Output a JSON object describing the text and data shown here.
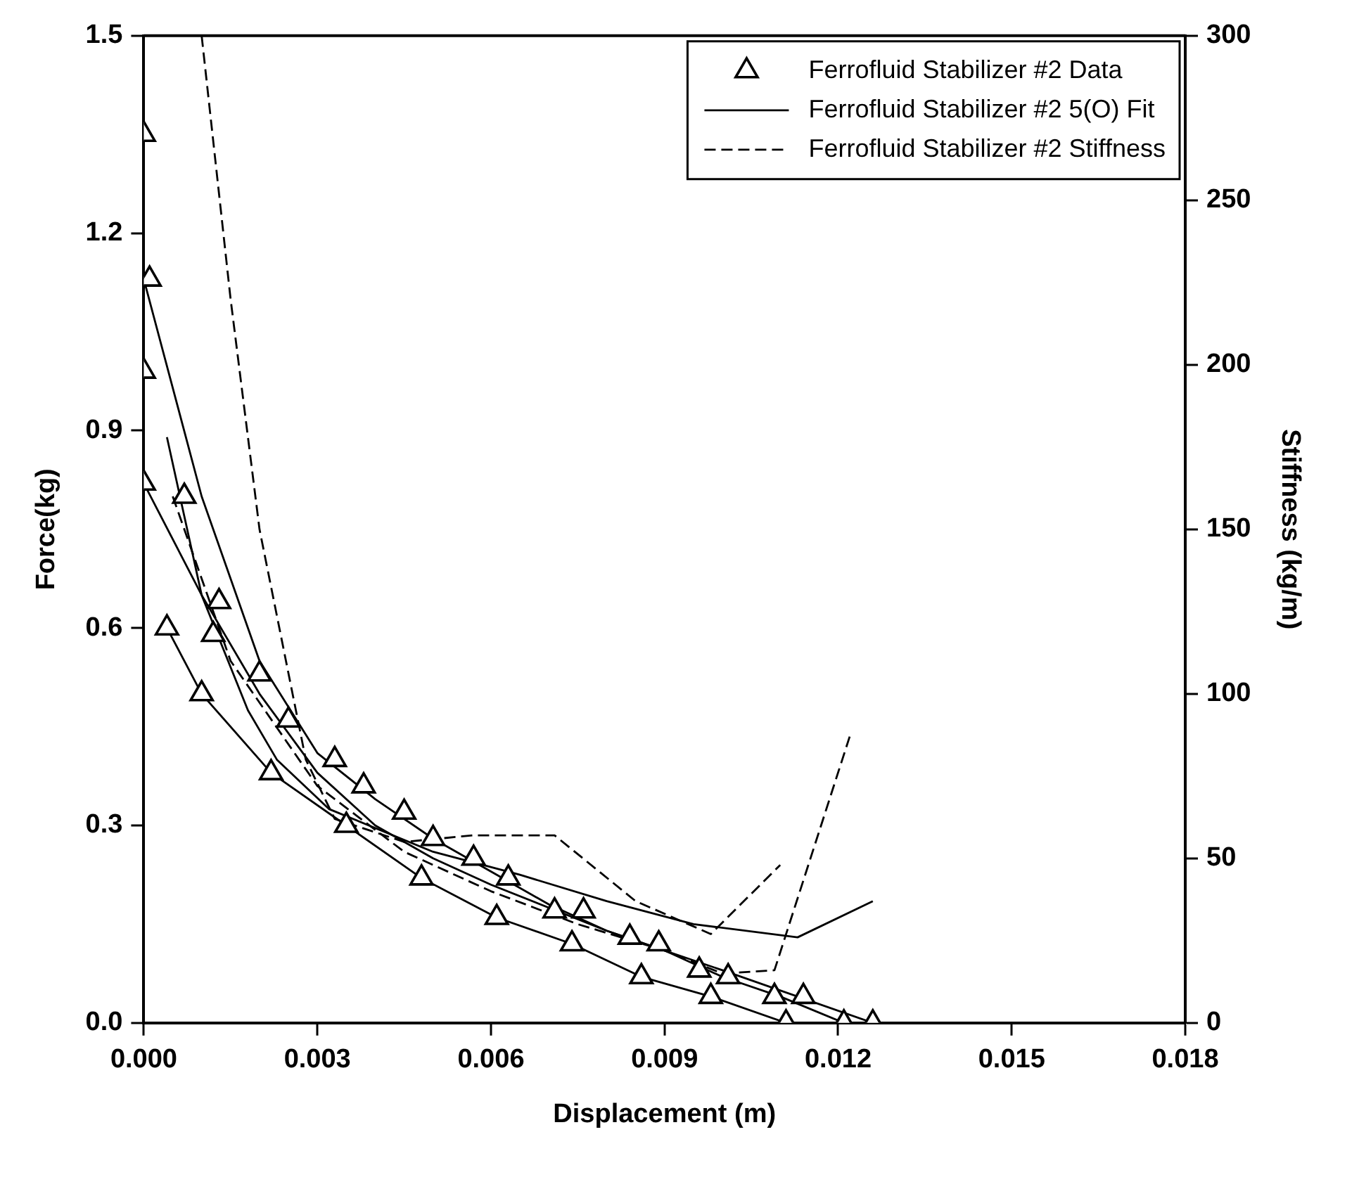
{
  "chart_data": {
    "type": "line",
    "xlabel": "Displacement (m)",
    "ylabel": "Force(kg)",
    "y2label": "Stiffness (kg/m)",
    "xlim": [
      0,
      0.018
    ],
    "xticks": [
      {
        "value": 0,
        "label": "0.000"
      },
      {
        "value": 0.003,
        "label": "0.003"
      },
      {
        "value": 0.006,
        "label": "0.006"
      },
      {
        "value": 0.009,
        "label": "0.009"
      },
      {
        "value": 0.012,
        "label": "0.012"
      },
      {
        "value": 0.015,
        "label": "0.015"
      },
      {
        "value": 0.018,
        "label": "0.018"
      }
    ],
    "ylim": [
      0,
      1.5
    ],
    "yticks": [
      {
        "value": 0,
        "label": "0.0"
      },
      0.3,
      0.6,
      0.9,
      1.2,
      1.5
    ],
    "y2lim": [
      0,
      300
    ],
    "y2ticks": [
      0,
      50,
      100,
      150,
      200,
      250,
      300
    ],
    "grid": false,
    "legend": "top right",
    "series": [
      {
        "name": "Ferrofluid Stabilizer #2 Data",
        "type": "scatter",
        "marker": "triangle",
        "color": "#000000",
        "x": [
          0,
          0.0001,
          0,
          0,
          0.0004,
          0.0007,
          0.001,
          0.0013,
          0.0012,
          0.002,
          0.0022,
          0.0025,
          0.0033,
          0.0035,
          0.0038,
          0.0045,
          0.0048,
          0.005,
          0.0057,
          0.0061,
          0.0063,
          0.0071,
          0.0074,
          0.0076,
          0.0084,
          0.0086,
          0.0089,
          0.0096,
          0.0098,
          0.0101,
          0.0109,
          0.0111,
          0.0114,
          0.0121,
          0.0126
        ],
        "values": [
          1.35,
          1.13,
          0.99,
          0.82,
          0.6,
          0.8,
          0.5,
          0.64,
          0.59,
          0.53,
          0.38,
          0.46,
          0.4,
          0.3,
          0.36,
          0.32,
          0.22,
          0.28,
          0.25,
          0.16,
          0.22,
          0.17,
          0.12,
          0.17,
          0.13,
          0.07,
          0.12,
          0.08,
          0.04,
          0.07,
          0.04,
          0,
          0.04,
          0,
          0
        ]
      },
      {
        "name": "Ferrofluid Stabilizer #2 5(O) Fit",
        "marker": "none",
        "line_style": "solid",
        "color": "#000000",
        "x": [
          0,
          0.001,
          0.002,
          0.003,
          0.004,
          0.005,
          0.006,
          0.007,
          0.008,
          0.009,
          0.01,
          0.011,
          0.0121
        ],
        "values": [
          1.13,
          0.8,
          0.55,
          0.41,
          0.34,
          0.28,
          0.23,
          0.18,
          0.14,
          0.11,
          0.07,
          0.04,
          0
        ]
      },
      {
        "marker": "none",
        "line_style": "solid",
        "color": "#000000",
        "x": [
          0,
          0.001,
          0.002,
          0.003,
          0.004,
          0.005,
          0.006,
          0.008,
          0.01,
          0.0126
        ],
        "values": [
          0.82,
          0.65,
          0.5,
          0.38,
          0.3,
          0.25,
          0.21,
          0.14,
          0.08,
          0
        ]
      },
      {
        "marker": "none",
        "line_style": "solid",
        "color": "#000000",
        "x": [
          0.0004,
          0.001,
          0.0022,
          0.0035,
          0.0048,
          0.0061,
          0.0074,
          0.0086,
          0.0098,
          0.0111
        ],
        "values": [
          0.6,
          0.5,
          0.38,
          0.3,
          0.22,
          0.16,
          0.12,
          0.07,
          0.04,
          0
        ]
      },
      {
        "name": "Ferrofluid Stabilizer #2 Stiffness",
        "axis": "y2",
        "marker": "none",
        "line_style": "dashed",
        "color": "#000000",
        "x": [
          0.001,
          0.0015,
          0.002,
          0.0028,
          0.0033,
          0.0045,
          0.0057,
          0.0071,
          0.0085,
          0.0098,
          0.011
        ],
        "values": [
          300,
          220,
          150,
          80,
          62,
          55,
          57,
          57,
          37,
          27,
          48
        ]
      },
      {
        "axis": "y2",
        "marker": "none",
        "line_style": "solid",
        "color": "#000000",
        "x": [
          0.0004,
          0.001,
          0.0018,
          0.0023,
          0.0032,
          0.005,
          0.0065,
          0.008,
          0.0095,
          0.0113,
          0.0126
        ],
        "values": [
          178,
          130,
          95,
          80,
          65,
          52,
          45,
          37,
          30,
          26,
          37
        ]
      },
      {
        "axis": "y2",
        "marker": "none",
        "line_style": "dashed",
        "color": "#000000",
        "x": [
          0.0005,
          0.0015,
          0.003,
          0.0045,
          0.006,
          0.0075,
          0.009,
          0.01,
          0.0109,
          0.0122
        ],
        "values": [
          160,
          110,
          72,
          52,
          40,
          30,
          22,
          15,
          16,
          87
        ]
      }
    ]
  }
}
